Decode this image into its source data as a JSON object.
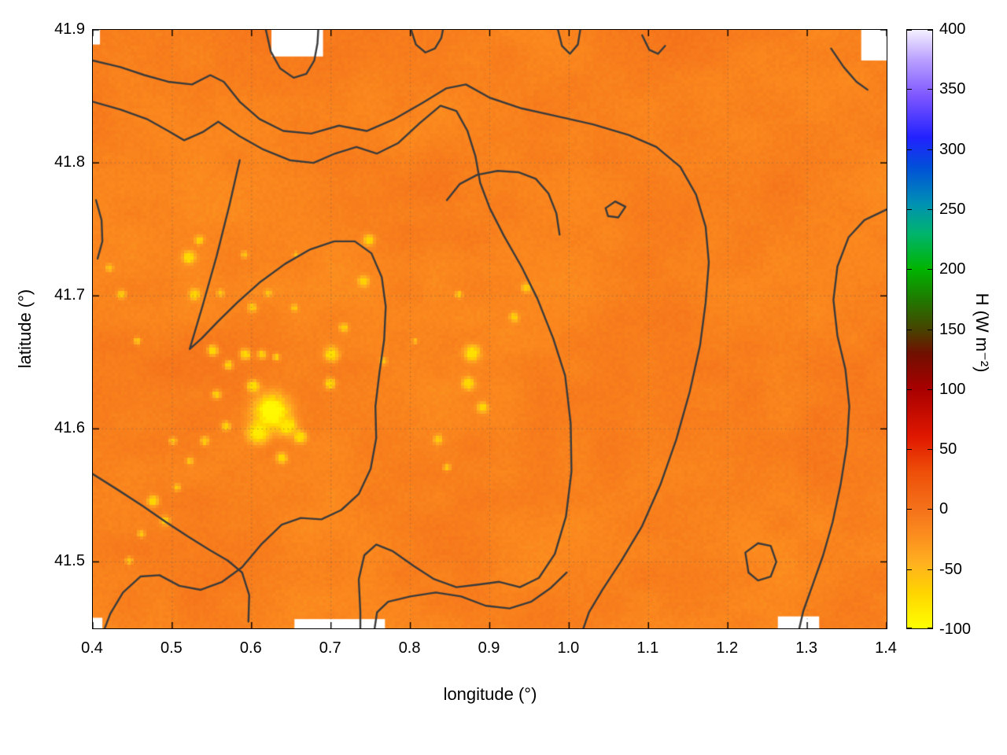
{
  "chart_data": {
    "type": "heatmap",
    "title": "",
    "xlabel": "longitude (°)",
    "ylabel": "latitude (°)",
    "x_range": [
      0.4,
      1.4
    ],
    "y_range": [
      41.45,
      41.9
    ],
    "x_tick_labels": [
      "0.4",
      "0.5",
      "0.6",
      "0.7",
      "0.8",
      "0.9",
      "1.0",
      "1.1",
      "1.2",
      "1.3",
      "1.4"
    ],
    "y_tick_labels": [
      "41.5",
      "41.6",
      "41.7",
      "41.8",
      "41.9"
    ],
    "grid": true,
    "colorbar": {
      "label": "H (W m⁻²)",
      "min": -100,
      "max": 400,
      "tick_labels": [
        "400",
        "350",
        "300",
        "250",
        "200",
        "150",
        "100",
        "50",
        "0",
        "-50",
        "-100"
      ],
      "stops": [
        [
          -100,
          "#ffff00"
        ],
        [
          -70,
          "#ffd400"
        ],
        [
          -45,
          "#ffb020"
        ],
        [
          -20,
          "#fb8a1e"
        ],
        [
          0,
          "#f4711a"
        ],
        [
          30,
          "#ee5009"
        ],
        [
          60,
          "#e01800"
        ],
        [
          100,
          "#a80000"
        ],
        [
          130,
          "#701000"
        ],
        [
          150,
          "#474400"
        ],
        [
          175,
          "#1f7a00"
        ],
        [
          200,
          "#00b400"
        ],
        [
          230,
          "#00b46e"
        ],
        [
          255,
          "#0090b4"
        ],
        [
          285,
          "#0050d8"
        ],
        [
          310,
          "#2222ff"
        ],
        [
          345,
          "#7e57ff"
        ],
        [
          375,
          "#b9a0ff"
        ],
        [
          400,
          "#f4f0ff"
        ]
      ]
    },
    "field": {
      "base_value": -12,
      "seed": 11,
      "noise_amplitudes": [
        6,
        4.5,
        3
      ],
      "description": "Sensible heat flux mostly between -30 and 0 W m-2 (orange) with scattered low patches near -60 to -95 W m-2 (yellow)"
    },
    "low_spots": [
      [
        0.625,
        41.613,
        0.02,
        -95
      ],
      [
        0.608,
        41.597,
        0.012,
        -85
      ],
      [
        0.645,
        41.602,
        0.01,
        -82
      ],
      [
        0.661,
        41.594,
        0.007,
        -75
      ],
      [
        0.638,
        41.578,
        0.006,
        -70
      ],
      [
        0.602,
        41.632,
        0.007,
        -75
      ],
      [
        0.568,
        41.602,
        0.005,
        -68
      ],
      [
        0.592,
        41.656,
        0.006,
        -72
      ],
      [
        0.571,
        41.648,
        0.005,
        -66
      ],
      [
        0.551,
        41.659,
        0.006,
        -70
      ],
      [
        0.613,
        41.656,
        0.005,
        -66
      ],
      [
        0.631,
        41.654,
        0.004,
        -63
      ],
      [
        0.528,
        41.701,
        0.006,
        -70
      ],
      [
        0.521,
        41.729,
        0.007,
        -74
      ],
      [
        0.534,
        41.742,
        0.005,
        -66
      ],
      [
        0.561,
        41.702,
        0.004,
        -60
      ],
      [
        0.601,
        41.691,
        0.005,
        -64
      ],
      [
        0.621,
        41.702,
        0.004,
        -60
      ],
      [
        0.654,
        41.691,
        0.004,
        -62
      ],
      [
        0.701,
        41.656,
        0.008,
        -76
      ],
      [
        0.699,
        41.634,
        0.006,
        -70
      ],
      [
        0.716,
        41.676,
        0.005,
        -64
      ],
      [
        0.741,
        41.711,
        0.006,
        -68
      ],
      [
        0.748,
        41.742,
        0.006,
        -70
      ],
      [
        0.878,
        41.657,
        0.009,
        -78
      ],
      [
        0.873,
        41.634,
        0.007,
        -72
      ],
      [
        0.891,
        41.616,
        0.006,
        -70
      ],
      [
        0.931,
        41.684,
        0.005,
        -66
      ],
      [
        0.946,
        41.706,
        0.005,
        -64
      ],
      [
        0.861,
        41.701,
        0.004,
        -60
      ],
      [
        0.835,
        41.592,
        0.005,
        -64
      ],
      [
        0.846,
        41.571,
        0.004,
        -60
      ],
      [
        0.476,
        41.546,
        0.006,
        -70
      ],
      [
        0.491,
        41.531,
        0.005,
        -64
      ],
      [
        0.506,
        41.556,
        0.004,
        -62
      ],
      [
        0.461,
        41.521,
        0.004,
        -60
      ],
      [
        0.522,
        41.576,
        0.004,
        -58
      ],
      [
        0.446,
        41.501,
        0.004,
        -60
      ],
      [
        0.501,
        41.591,
        0.004,
        -60
      ],
      [
        0.541,
        41.591,
        0.005,
        -62
      ],
      [
        0.556,
        41.626,
        0.005,
        -64
      ],
      [
        0.436,
        41.701,
        0.005,
        -62
      ],
      [
        0.421,
        41.721,
        0.004,
        -58
      ],
      [
        0.456,
        41.666,
        0.004,
        -58
      ],
      [
        0.591,
        41.731,
        0.004,
        -58
      ],
      [
        0.656,
        41.731,
        0.003,
        -55
      ],
      [
        0.766,
        41.651,
        0.004,
        -58
      ],
      [
        0.806,
        41.666,
        0.003,
        -55
      ]
    ],
    "contours": [
      [
        [
          0.4,
          41.877
        ],
        [
          0.435,
          41.872
        ],
        [
          0.465,
          41.866
        ],
        [
          0.495,
          41.861
        ],
        [
          0.525,
          41.859
        ],
        [
          0.548,
          41.866
        ],
        [
          0.565,
          41.861
        ],
        [
          0.585,
          41.846
        ],
        [
          0.61,
          41.833
        ],
        [
          0.64,
          41.824
        ],
        [
          0.675,
          41.822
        ],
        [
          0.71,
          41.828
        ],
        [
          0.745,
          41.824
        ],
        [
          0.78,
          41.833
        ],
        [
          0.815,
          41.845
        ],
        [
          0.845,
          41.856
        ],
        [
          0.87,
          41.859
        ],
        [
          0.9,
          41.849
        ],
        [
          0.94,
          41.841
        ],
        [
          0.985,
          41.835
        ],
        [
          1.03,
          41.829
        ],
        [
          1.075,
          41.821
        ],
        [
          1.11,
          41.812
        ],
        [
          1.14,
          41.797
        ],
        [
          1.16,
          41.776
        ],
        [
          1.172,
          41.752
        ],
        [
          1.176,
          41.725
        ],
        [
          1.172,
          41.695
        ],
        [
          1.165,
          41.663
        ],
        [
          1.152,
          41.628
        ],
        [
          1.135,
          41.592
        ],
        [
          1.115,
          41.558
        ],
        [
          1.092,
          41.527
        ],
        [
          1.065,
          41.5
        ],
        [
          1.042,
          41.479
        ],
        [
          1.025,
          41.462
        ],
        [
          1.018,
          41.45
        ]
      ],
      [
        [
          0.4,
          41.846
        ],
        [
          0.435,
          41.84
        ],
        [
          0.468,
          41.833
        ],
        [
          0.495,
          41.824
        ],
        [
          0.515,
          41.817
        ],
        [
          0.538,
          41.823
        ],
        [
          0.558,
          41.831
        ],
        [
          0.585,
          41.82
        ],
        [
          0.615,
          41.81
        ],
        [
          0.648,
          41.802
        ],
        [
          0.678,
          41.8
        ],
        [
          0.705,
          41.807
        ],
        [
          0.732,
          41.812
        ],
        [
          0.758,
          41.807
        ],
        [
          0.785,
          41.815
        ],
        [
          0.812,
          41.83
        ],
        [
          0.838,
          41.843
        ],
        [
          0.858,
          41.839
        ],
        [
          0.872,
          41.824
        ],
        [
          0.882,
          41.805
        ],
        [
          0.888,
          41.785
        ],
        [
          0.9,
          41.766
        ],
        [
          0.918,
          41.745
        ],
        [
          0.94,
          41.722
        ],
        [
          0.96,
          41.698
        ],
        [
          0.98,
          41.668
        ],
        [
          0.995,
          41.64
        ],
        [
          1.002,
          41.604
        ],
        [
          1.003,
          41.568
        ],
        [
          0.996,
          41.534
        ],
        [
          0.982,
          41.506
        ],
        [
          0.962,
          41.488
        ],
        [
          0.938,
          41.481
        ],
        [
          0.912,
          41.485
        ],
        [
          0.886,
          41.483
        ],
        [
          0.858,
          41.481
        ],
        [
          0.83,
          41.487
        ],
        [
          0.804,
          41.497
        ],
        [
          0.778,
          41.508
        ],
        [
          0.757,
          41.513
        ],
        [
          0.742,
          41.505
        ],
        [
          0.735,
          41.487
        ],
        [
          0.737,
          41.462
        ],
        [
          0.737,
          41.45
        ]
      ],
      [
        [
          0.846,
          41.772
        ],
        [
          0.862,
          41.784
        ],
        [
          0.884,
          41.791
        ],
        [
          0.91,
          41.794
        ],
        [
          0.936,
          41.793
        ],
        [
          0.958,
          41.788
        ],
        [
          0.974,
          41.777
        ],
        [
          0.984,
          41.762
        ],
        [
          0.988,
          41.746
        ]
      ],
      [
        [
          0.585,
          41.802
        ],
        [
          0.572,
          41.768
        ],
        [
          0.556,
          41.73
        ],
        [
          0.538,
          41.692
        ],
        [
          0.522,
          41.66
        ],
        [
          0.537,
          41.668
        ],
        [
          0.558,
          41.681
        ],
        [
          0.582,
          41.695
        ],
        [
          0.61,
          41.71
        ],
        [
          0.642,
          41.724
        ],
        [
          0.674,
          41.735
        ],
        [
          0.704,
          41.741
        ],
        [
          0.73,
          41.741
        ],
        [
          0.751,
          41.732
        ],
        [
          0.764,
          41.714
        ],
        [
          0.769,
          41.692
        ],
        [
          0.767,
          41.667
        ],
        [
          0.761,
          41.642
        ],
        [
          0.756,
          41.617
        ],
        [
          0.757,
          41.593
        ],
        [
          0.75,
          41.57
        ],
        [
          0.735,
          41.551
        ],
        [
          0.713,
          41.539
        ],
        [
          0.688,
          41.532
        ],
        [
          0.662,
          41.533
        ],
        [
          0.638,
          41.528
        ],
        [
          0.612,
          41.513
        ],
        [
          0.588,
          41.496
        ],
        [
          0.563,
          41.485
        ],
        [
          0.536,
          41.479
        ],
        [
          0.509,
          41.482
        ],
        [
          0.484,
          41.49
        ],
        [
          0.46,
          41.489
        ],
        [
          0.438,
          41.477
        ],
        [
          0.422,
          41.461
        ],
        [
          0.415,
          41.45
        ]
      ],
      [
        [
          0.4,
          41.566
        ],
        [
          0.432,
          41.554
        ],
        [
          0.463,
          41.542
        ],
        [
          0.492,
          41.53
        ],
        [
          0.52,
          41.519
        ],
        [
          0.547,
          41.509
        ],
        [
          0.57,
          41.501
        ],
        [
          0.588,
          41.492
        ],
        [
          0.597,
          41.475
        ],
        [
          0.596,
          41.455
        ]
      ],
      [
        [
          0.755,
          41.45
        ],
        [
          0.758,
          41.462
        ],
        [
          0.772,
          41.47
        ],
        [
          0.8,
          41.474
        ],
        [
          0.832,
          41.477
        ],
        [
          0.864,
          41.474
        ],
        [
          0.895,
          41.467
        ],
        [
          0.925,
          41.465
        ],
        [
          0.952,
          41.47
        ],
        [
          0.976,
          41.48
        ],
        [
          0.997,
          41.492
        ]
      ],
      [
        [
          1.4,
          41.765
        ],
        [
          1.372,
          41.757
        ],
        [
          1.352,
          41.744
        ],
        [
          1.338,
          41.722
        ],
        [
          1.333,
          41.697
        ],
        [
          1.338,
          41.67
        ],
        [
          1.348,
          41.645
        ],
        [
          1.353,
          41.617
        ],
        [
          1.35,
          41.588
        ],
        [
          1.342,
          41.558
        ],
        [
          1.332,
          41.53
        ],
        [
          1.32,
          41.505
        ],
        [
          1.307,
          41.483
        ],
        [
          1.295,
          41.463
        ],
        [
          1.29,
          41.45
        ]
      ],
      [
        [
          1.222,
          41.507
        ],
        [
          1.238,
          41.514
        ],
        [
          1.254,
          41.512
        ],
        [
          1.261,
          41.5
        ],
        [
          1.254,
          41.489
        ],
        [
          1.238,
          41.486
        ],
        [
          1.226,
          41.492
        ],
        [
          1.222,
          41.507
        ]
      ],
      [
        [
          1.33,
          41.886
        ],
        [
          1.346,
          41.872
        ],
        [
          1.362,
          41.861
        ],
        [
          1.376,
          41.855
        ]
      ],
      [
        [
          0.618,
          41.9
        ],
        [
          0.624,
          41.884
        ],
        [
          0.636,
          41.871
        ],
        [
          0.653,
          41.864
        ],
        [
          0.669,
          41.867
        ],
        [
          0.679,
          41.877
        ],
        [
          0.683,
          41.89
        ],
        [
          0.684,
          41.9
        ]
      ],
      [
        [
          0.801,
          41.9
        ],
        [
          0.807,
          41.889
        ],
        [
          0.819,
          41.883
        ],
        [
          0.831,
          41.886
        ],
        [
          0.839,
          41.894
        ],
        [
          0.841,
          41.9
        ]
      ],
      [
        [
          0.986,
          41.9
        ],
        [
          0.991,
          41.888
        ],
        [
          1.001,
          41.882
        ],
        [
          1.011,
          41.889
        ],
        [
          1.014,
          41.9
        ]
      ],
      [
        [
          1.092,
          41.896
        ],
        [
          1.101,
          41.885
        ],
        [
          1.112,
          41.882
        ],
        [
          1.121,
          41.888
        ]
      ],
      [
        [
          0.404,
          41.772
        ],
        [
          0.411,
          41.757
        ],
        [
          0.412,
          41.741
        ],
        [
          0.406,
          41.728
        ]
      ],
      [
        [
          1.046,
          41.766
        ],
        [
          1.058,
          41.771
        ],
        [
          1.071,
          41.767
        ],
        [
          1.062,
          41.759
        ],
        [
          1.049,
          41.76
        ],
        [
          1.046,
          41.766
        ]
      ]
    ],
    "missing_data_gaps": [
      [
        0.625,
        0.69,
        41.88,
        41.9
      ],
      [
        0.654,
        0.768,
        41.45,
        41.457
      ],
      [
        1.263,
        1.315,
        41.45,
        41.459
      ],
      [
        1.368,
        1.4,
        41.877,
        41.9
      ],
      [
        0.4,
        0.412,
        41.45,
        41.458
      ],
      [
        0.4,
        0.409,
        41.889,
        41.9
      ]
    ]
  }
}
